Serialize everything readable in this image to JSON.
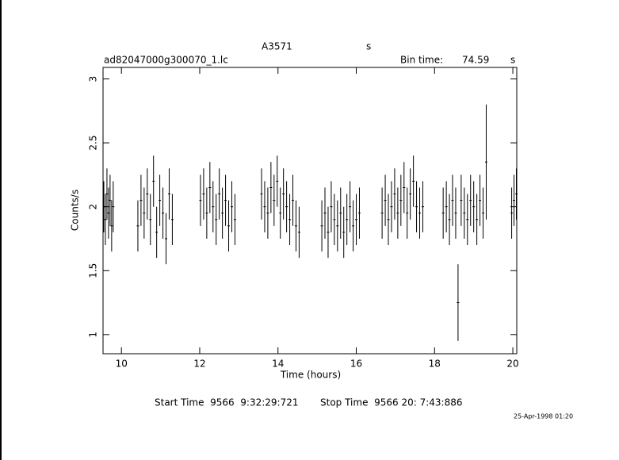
{
  "header": {
    "target": "A3571",
    "target_unit": "s",
    "file": "ad82047000g300070_1.lc",
    "bin_label": "Bin time:",
    "bin_time": 74.59,
    "bin_unit": "s"
  },
  "chart_data": {
    "type": "errorbar",
    "ylabel": "Counts/s",
    "xlabel": "Time (hours)",
    "xlim": [
      9.53,
      20.1
    ],
    "ylim": [
      0.85,
      3.09
    ],
    "xticks": [
      10,
      12,
      14,
      16,
      18,
      20
    ],
    "yticks": [
      1,
      1.5,
      2,
      2.5,
      3
    ],
    "color": "#000000",
    "x": [
      9.55,
      9.59,
      9.63,
      9.67,
      9.71,
      9.75,
      9.79,
      10.42,
      10.5,
      10.58,
      10.66,
      10.74,
      10.82,
      10.9,
      10.98,
      11.06,
      11.14,
      11.22,
      11.3,
      12.02,
      12.1,
      12.18,
      12.26,
      12.34,
      12.42,
      12.5,
      12.58,
      12.66,
      12.74,
      12.82,
      12.9,
      13.58,
      13.66,
      13.74,
      13.82,
      13.9,
      13.98,
      14.06,
      14.14,
      14.22,
      14.3,
      14.38,
      14.46,
      14.54,
      15.12,
      15.2,
      15.28,
      15.36,
      15.44,
      15.52,
      15.6,
      15.68,
      15.76,
      15.84,
      15.92,
      16.0,
      16.08,
      16.66,
      16.74,
      16.82,
      16.9,
      16.98,
      17.06,
      17.14,
      17.22,
      17.3,
      17.38,
      17.46,
      17.54,
      17.62,
      17.7,
      18.22,
      18.3,
      18.38,
      18.46,
      18.54,
      18.6,
      18.68,
      18.76,
      18.84,
      18.92,
      19.0,
      19.08,
      19.16,
      19.24,
      19.32,
      19.97,
      20.03,
      20.09
    ],
    "values": [
      2.0,
      1.9,
      2.1,
      1.95,
      2.05,
      1.85,
      2.0,
      1.85,
      2.05,
      1.95,
      2.1,
      1.9,
      2.2,
      1.8,
      2.05,
      1.95,
      1.75,
      2.1,
      1.9,
      2.05,
      2.1,
      1.95,
      2.15,
      2.0,
      1.9,
      2.1,
      1.95,
      2.05,
      1.85,
      2.0,
      1.9,
      2.1,
      2.0,
      1.95,
      2.15,
      2.05,
      2.2,
      1.95,
      2.1,
      2.0,
      1.9,
      2.05,
      1.85,
      1.8,
      1.85,
      1.95,
      1.8,
      2.0,
      1.9,
      1.85,
      1.95,
      1.8,
      1.9,
      2.0,
      1.85,
      1.9,
      1.95,
      1.95,
      2.05,
      1.9,
      2.0,
      2.1,
      1.95,
      2.05,
      2.15,
      1.95,
      2.1,
      2.2,
      2.0,
      1.95,
      2.0,
      1.95,
      2.0,
      1.9,
      2.05,
      1.95,
      1.25,
      2.05,
      1.95,
      1.9,
      2.05,
      2.0,
      1.9,
      2.05,
      1.95,
      2.35,
      1.95,
      2.05,
      2.1
    ],
    "errors": [
      0.2,
      0.2,
      0.2,
      0.2,
      0.2,
      0.2,
      0.2,
      0.2,
      0.2,
      0.2,
      0.2,
      0.2,
      0.2,
      0.2,
      0.2,
      0.2,
      0.2,
      0.2,
      0.2,
      0.2,
      0.2,
      0.2,
      0.2,
      0.2,
      0.2,
      0.2,
      0.2,
      0.2,
      0.2,
      0.2,
      0.2,
      0.2,
      0.2,
      0.2,
      0.2,
      0.2,
      0.2,
      0.2,
      0.2,
      0.2,
      0.2,
      0.2,
      0.2,
      0.2,
      0.2,
      0.2,
      0.2,
      0.2,
      0.2,
      0.2,
      0.2,
      0.2,
      0.2,
      0.2,
      0.2,
      0.2,
      0.2,
      0.2,
      0.2,
      0.2,
      0.2,
      0.2,
      0.2,
      0.2,
      0.2,
      0.2,
      0.2,
      0.2,
      0.2,
      0.2,
      0.2,
      0.2,
      0.2,
      0.2,
      0.2,
      0.2,
      0.3,
      0.2,
      0.2,
      0.2,
      0.2,
      0.2,
      0.2,
      0.2,
      0.2,
      0.45,
      0.2,
      0.2,
      0.2
    ]
  },
  "footer": {
    "start": "Start Time  9566  9:32:29:721",
    "stop": "Stop Time  9566 20: 7:43:886",
    "date": "25-Apr-1998 01:20"
  }
}
